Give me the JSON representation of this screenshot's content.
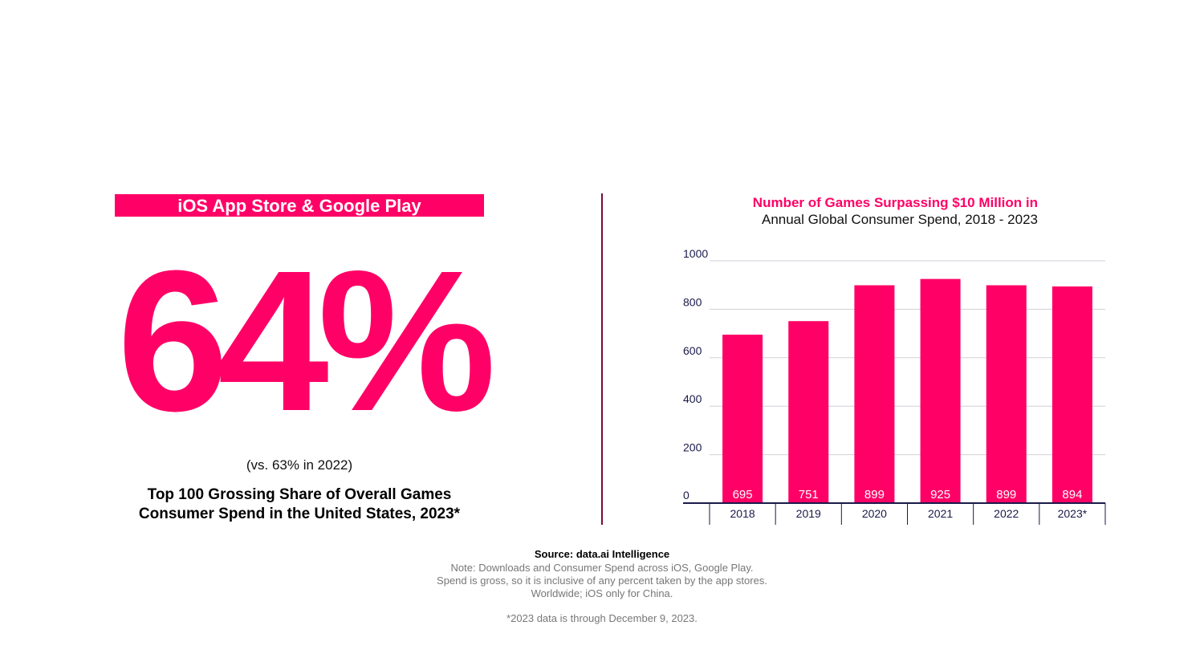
{
  "left_panel": {
    "banner": "iOS App Store & Google Play",
    "big_stat": "64%",
    "comparison": "(vs. 63% in 2022)",
    "caption_line1": "Top 100 Grossing Share of Overall Games",
    "caption_line2": "Consumer Spend in the United States, 2023*"
  },
  "colors": {
    "accent": "#ff0066",
    "divider": "#7a0a3a",
    "axis": "#1a1a4a",
    "grid": "#d0d0d8",
    "tick_text": "#1a1a4a"
  },
  "chart_data": {
    "type": "bar",
    "title": "Number of Games Surpassing $10 Million in",
    "subtitle": "Annual Global Consumer Spend, 2018 - 2023",
    "categories": [
      "2018",
      "2019",
      "2020",
      "2021",
      "2022",
      "2023*"
    ],
    "values": [
      695,
      751,
      899,
      925,
      899,
      894
    ],
    "data_labels": [
      "695",
      "751",
      "899",
      "925",
      "899",
      "894"
    ],
    "ylim": [
      0,
      1000
    ],
    "yticks": [
      0,
      200,
      400,
      600,
      800,
      1000
    ],
    "xlabel": "",
    "ylabel": "",
    "grid": true
  },
  "footer": {
    "source": "Source: data.ai Intelligence",
    "note_line1": "Note: Downloads and Consumer Spend across iOS, Google Play.",
    "note_line2": "Spend is gross, so it is inclusive of any percent taken by the app stores.",
    "note_line3": "Worldwide; iOS only for China.",
    "footnote": "*2023 data is through December 9, 2023."
  }
}
